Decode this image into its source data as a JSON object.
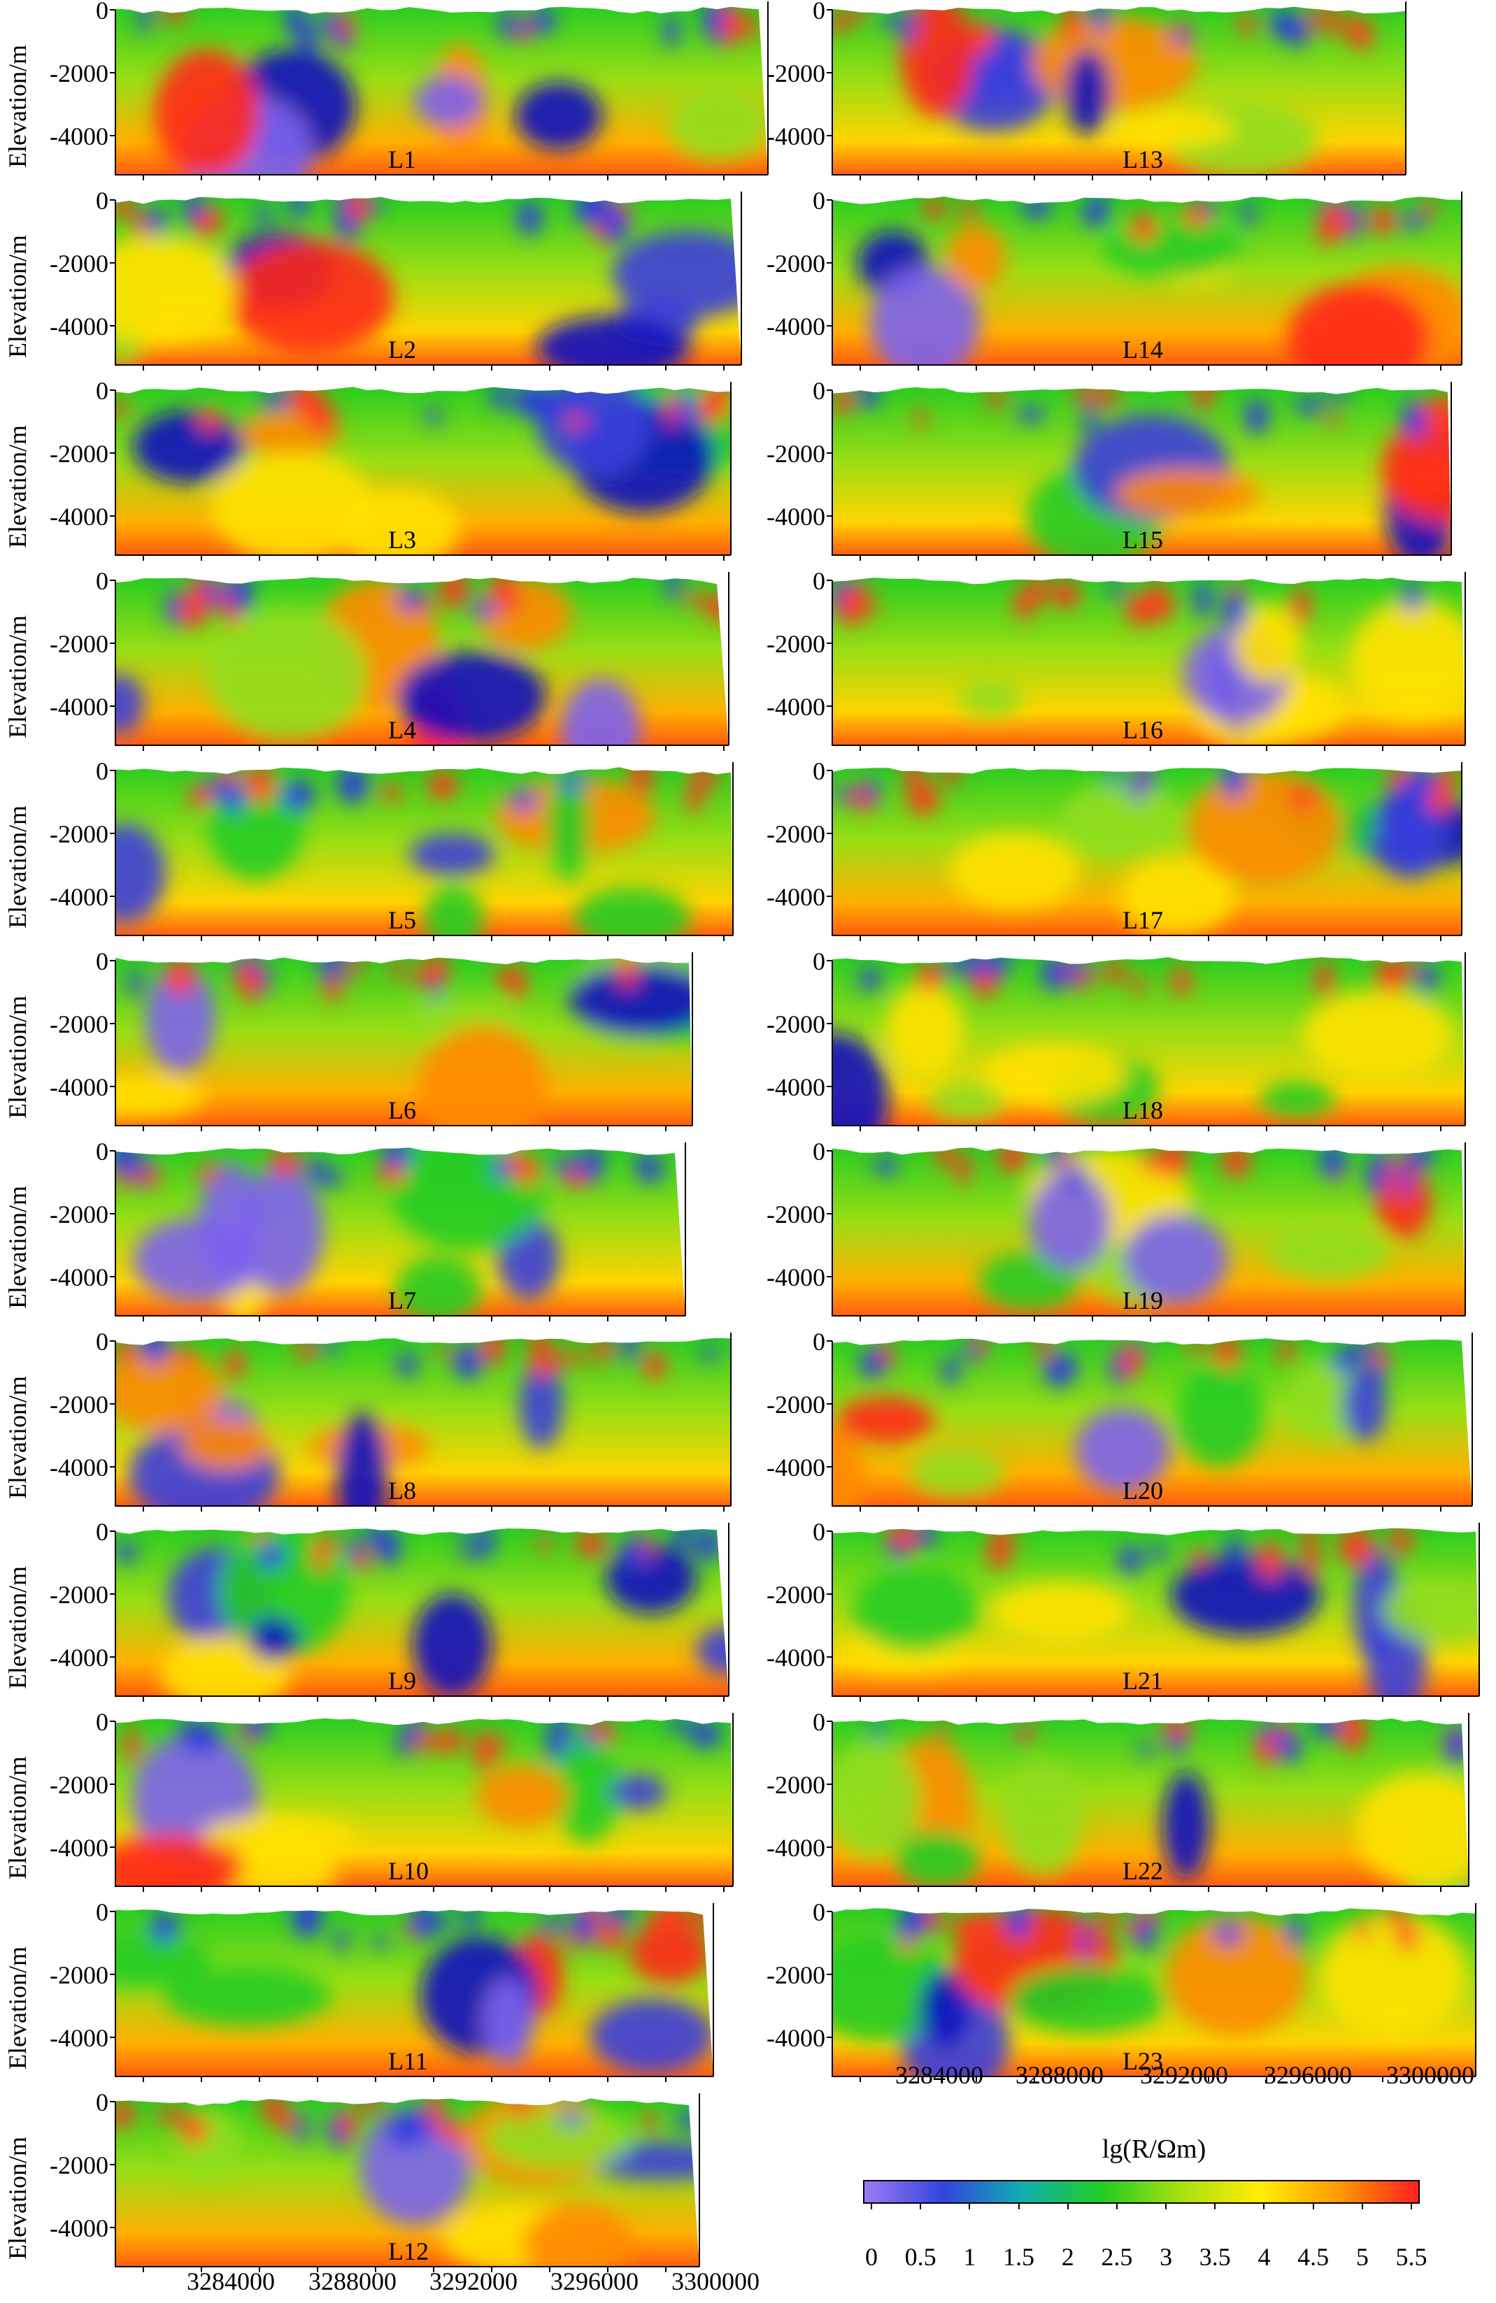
{
  "y_axis": {
    "label": "Elevation/m",
    "ticks": [
      "0",
      "-2000",
      "-4000"
    ]
  },
  "x_axis": {
    "ticks": [
      "3284000",
      "3288000",
      "3292000",
      "3296000",
      "3300000"
    ]
  },
  "colorbar": {
    "title": "lg(R/Ωm)",
    "ticks": [
      "0",
      "0.5",
      "1",
      "1.5",
      "2",
      "2.5",
      "3",
      "3.5",
      "4",
      "4.5",
      "5",
      "5.5"
    ],
    "colors": [
      "#9a7cf3",
      "#3344dd",
      "#10b0b0",
      "#22cc22",
      "#a8e010",
      "#ffee00",
      "#ff9900",
      "#ff2020"
    ]
  },
  "chart_data": {
    "type": "heatmap",
    "panels": [
      {
        "name": "L1",
        "column": "left"
      },
      {
        "name": "L2",
        "column": "left"
      },
      {
        "name": "L3",
        "column": "left"
      },
      {
        "name": "L4",
        "column": "left"
      },
      {
        "name": "L5",
        "column": "left"
      },
      {
        "name": "L6",
        "column": "left"
      },
      {
        "name": "L7",
        "column": "left"
      },
      {
        "name": "L8",
        "column": "left"
      },
      {
        "name": "L9",
        "column": "left"
      },
      {
        "name": "L10",
        "column": "left"
      },
      {
        "name": "L11",
        "column": "left"
      },
      {
        "name": "L12",
        "column": "left"
      },
      {
        "name": "L13",
        "column": "right"
      },
      {
        "name": "L14",
        "column": "right"
      },
      {
        "name": "L15",
        "column": "right"
      },
      {
        "name": "L16",
        "column": "right"
      },
      {
        "name": "L17",
        "column": "right"
      },
      {
        "name": "L18",
        "column": "right"
      },
      {
        "name": "L19",
        "column": "right"
      },
      {
        "name": "L20",
        "column": "right"
      },
      {
        "name": "L21",
        "column": "right"
      },
      {
        "name": "L22",
        "column": "right"
      },
      {
        "name": "L23",
        "column": "right"
      }
    ],
    "xlim": [
      3282000,
      3303000
    ],
    "ylim": [
      -4800,
      500
    ],
    "value_range": [
      0,
      5.5
    ]
  }
}
